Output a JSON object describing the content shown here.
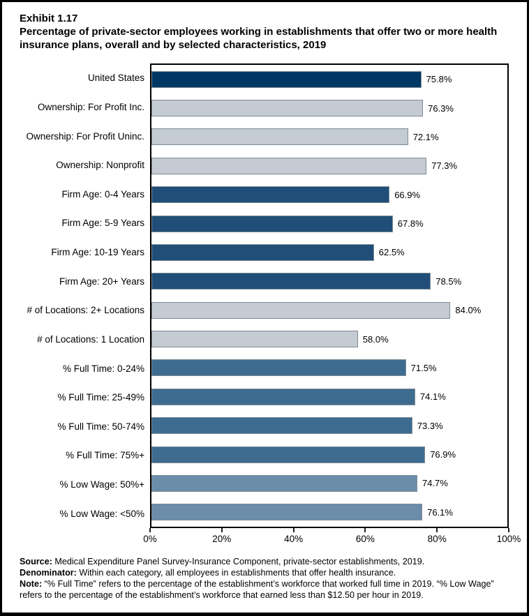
{
  "title": {
    "exhibit": "Exhibit 1.17",
    "text": "Percentage of private-sector employees working in establishments that offer two or more health insurance plans, overall and by selected characteristics, 2019"
  },
  "chart_data": {
    "type": "bar",
    "orientation": "horizontal",
    "title": "Percentage of private-sector employees working in establishments that offer two or more health insurance plans, overall and by selected characteristics, 2019",
    "xlabel": "",
    "ylabel": "",
    "xlim": [
      0,
      100
    ],
    "x_tick_labels": [
      "0%",
      "20%",
      "40%",
      "60%",
      "80%",
      "100%"
    ],
    "grid": false,
    "legend": false,
    "bar_border_color": "#7e8b95",
    "colors": {
      "united_states": "#003865",
      "ownership_locations": "#c5cbd3",
      "firm_age": "#204e78",
      "full_time": "#3e6c90",
      "low_wage": "#6b8da9"
    },
    "bars": [
      {
        "label": "United States",
        "value": 75.8,
        "display": "75.8%",
        "fill": "#003865"
      },
      {
        "label": "Ownership: For Profit Inc.",
        "value": 76.3,
        "display": "76.3%",
        "fill": "#c5cbd3"
      },
      {
        "label": "Ownership: For Profit Uninc.",
        "value": 72.1,
        "display": "72.1%",
        "fill": "#c5cbd3"
      },
      {
        "label": "Ownership: Nonprofit",
        "value": 77.3,
        "display": "77.3%",
        "fill": "#c5cbd3"
      },
      {
        "label": "Firm Age: 0-4 Years",
        "value": 66.9,
        "display": "66.9%",
        "fill": "#204e78"
      },
      {
        "label": "Firm Age: 5-9 Years",
        "value": 67.8,
        "display": "67.8%",
        "fill": "#204e78"
      },
      {
        "label": "Firm Age: 10-19 Years",
        "value": 62.5,
        "display": "62.5%",
        "fill": "#204e78"
      },
      {
        "label": "Firm Age: 20+ Years",
        "value": 78.5,
        "display": "78.5%",
        "fill": "#204e78"
      },
      {
        "label": "# of Locations: 2+ Locations",
        "value": 84.0,
        "display": "84.0%",
        "fill": "#c5cbd3"
      },
      {
        "label": "# of Locations: 1 Location",
        "value": 58.0,
        "display": "58.0%",
        "fill": "#c5cbd3"
      },
      {
        "label": "% Full Time: 0-24%",
        "value": 71.5,
        "display": "71.5%",
        "fill": "#3e6c90"
      },
      {
        "label": "% Full Time: 25-49%",
        "value": 74.1,
        "display": "74.1%",
        "fill": "#3e6c90"
      },
      {
        "label": "% Full Time: 50-74%",
        "value": 73.3,
        "display": "73.3%",
        "fill": "#3e6c90"
      },
      {
        "label": "% Full Time: 75%+",
        "value": 76.9,
        "display": "76.9%",
        "fill": "#3e6c90"
      },
      {
        "label": "% Low Wage: 50%+",
        "value": 74.7,
        "display": "74.7%",
        "fill": "#6b8da9"
      },
      {
        "label": "% Low Wage: <50%",
        "value": 76.1,
        "display": "76.1%",
        "fill": "#6b8da9"
      }
    ]
  },
  "footer": {
    "source_label": "Source:",
    "source_text": " Medical Expenditure Panel Survey-Insurance Component, private-sector establishments, 2019.",
    "denominator_label": "Denominator:",
    "denominator_text": " Within each category, all employees in establishments that offer health insurance.",
    "note_label": "Note:",
    "note_text": " “% Full Time” refers to the percentage of the establishment’s workforce that worked full time in 2019. “% Low Wage” refers to the percentage of the establishment’s workforce that earned less than $12.50 per hour in 2019."
  }
}
